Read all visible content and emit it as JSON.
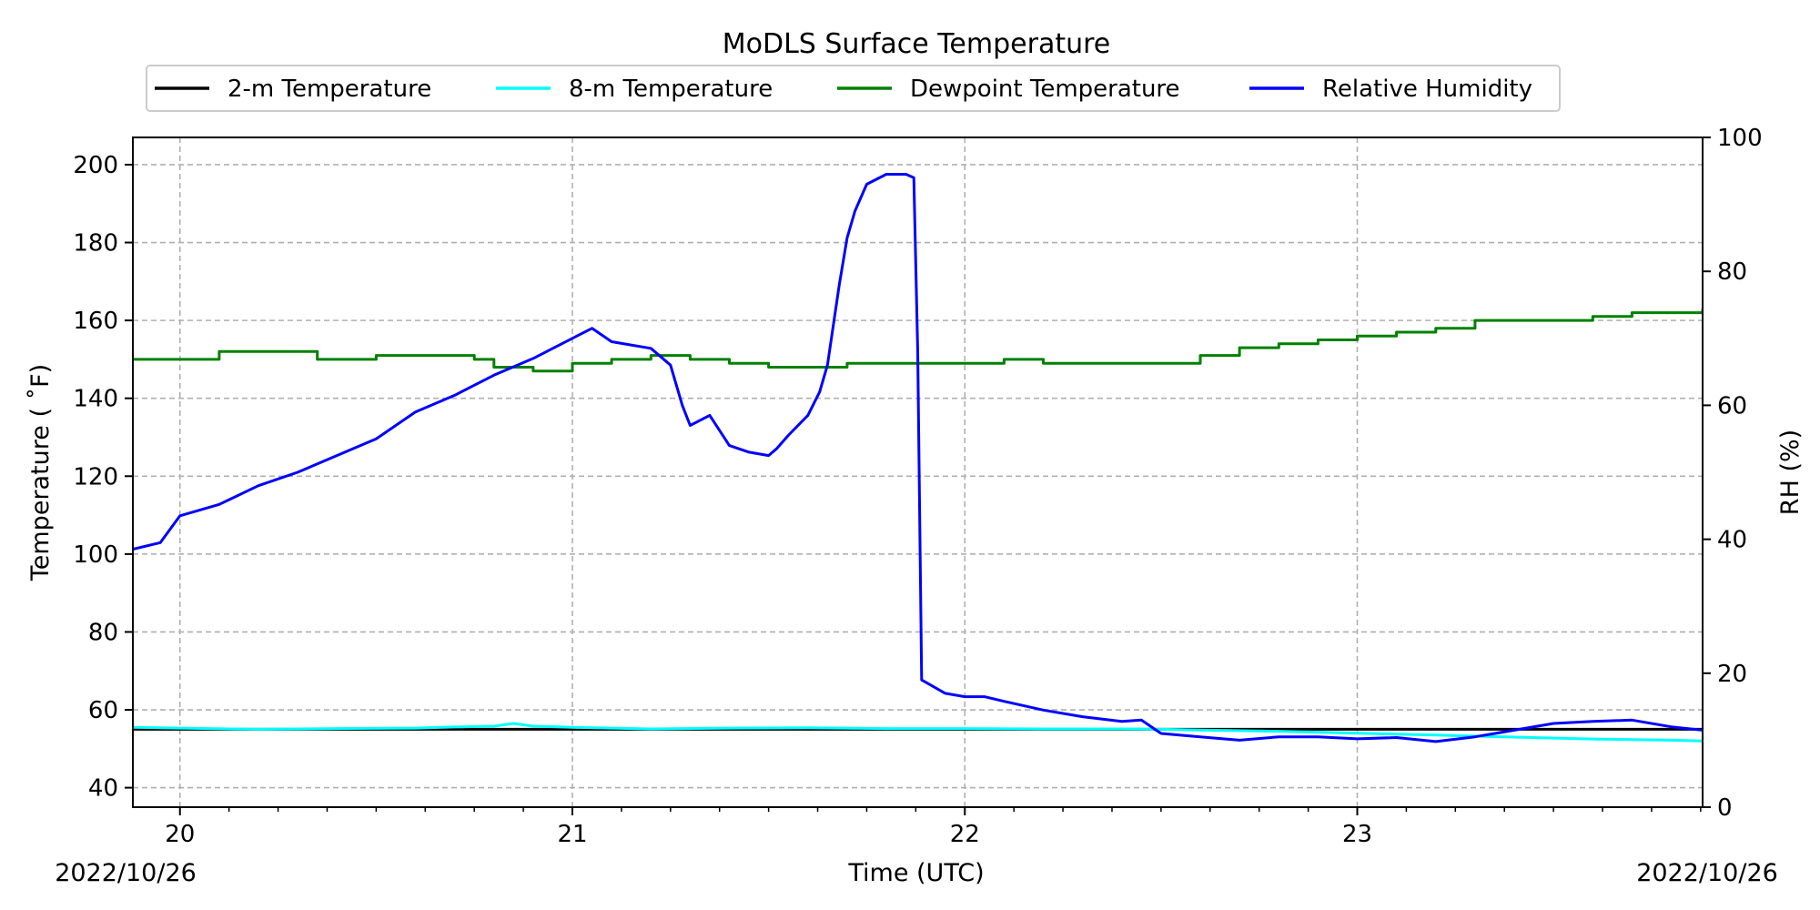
{
  "chart_data": {
    "type": "line",
    "title": "MoDLS Surface Temperature",
    "xlabel": "Time (UTC)",
    "ylabel_left": "Temperature ($^\\circ$F)",
    "ylabel_left_display": "Temperature ( ˚F)",
    "ylabel_right": "RH (%)",
    "x_unit": "hour (UTC), 2022/10/26",
    "xlim": [
      19.88,
      23.88
    ],
    "ylim_left": [
      35,
      207
    ],
    "ylim_right": [
      0,
      100
    ],
    "x_ticks": [
      20,
      21,
      22,
      23
    ],
    "x_tick_labels": [
      "20",
      "21",
      "22",
      "23"
    ],
    "y_ticks_left": [
      40,
      60,
      80,
      100,
      120,
      140,
      160,
      180,
      200
    ],
    "y_ticks_right": [
      0,
      20,
      40,
      60,
      80,
      100
    ],
    "date_left": "2022/10/26",
    "date_right": "2022/10/26",
    "grid": true,
    "legend_position": "top-center",
    "series": [
      {
        "name": "2-m Temperature",
        "axis": "left",
        "color": "#000000",
        "x": [
          19.88,
          20.2,
          20.6,
          21.0,
          21.4,
          21.8,
          22.2,
          22.6,
          23.0,
          23.4,
          23.88
        ],
        "y": [
          55,
          55,
          55,
          55,
          55,
          55,
          55,
          55,
          55,
          55,
          55
        ]
      },
      {
        "name": "8-m Temperature",
        "axis": "left",
        "color": "#00ffff",
        "x": [
          19.88,
          20.0,
          20.2,
          20.4,
          20.6,
          20.7,
          20.8,
          20.85,
          20.9,
          21.0,
          21.2,
          21.4,
          21.6,
          21.8,
          22.0,
          22.2,
          22.4,
          22.5,
          22.6,
          22.8,
          23.0,
          23.2,
          23.4,
          23.6,
          23.8,
          23.88
        ],
        "y": [
          55.5,
          55.3,
          55.0,
          55.2,
          55.3,
          55.6,
          55.8,
          56.5,
          55.8,
          55.5,
          55.1,
          55.3,
          55.4,
          55.2,
          55.2,
          55.1,
          55.1,
          55.0,
          54.8,
          54.5,
          54.0,
          53.5,
          53.0,
          52.5,
          52.2,
          52.0
        ]
      },
      {
        "name": "Dewpoint Temperature",
        "axis": "left",
        "color": "#008000",
        "x": [
          19.88,
          19.95,
          20.0,
          20.1,
          20.2,
          20.35,
          20.5,
          20.65,
          20.75,
          20.8,
          20.9,
          21.0,
          21.1,
          21.2,
          21.3,
          21.4,
          21.5,
          21.6,
          21.7,
          21.8,
          22.0,
          22.1,
          22.2,
          22.3,
          22.4,
          22.5,
          22.6,
          22.7,
          22.8,
          22.9,
          23.0,
          23.1,
          23.2,
          23.3,
          23.5,
          23.6,
          23.7,
          23.8,
          23.88
        ],
        "y": [
          150,
          150,
          150,
          152,
          152,
          150,
          151,
          151,
          150,
          148,
          147,
          149,
          150,
          151,
          150,
          149,
          148,
          148,
          149,
          149,
          149,
          150,
          149,
          149,
          149,
          149,
          151,
          153,
          154,
          155,
          156,
          157,
          158,
          160,
          160,
          161,
          162,
          162,
          163
        ]
      },
      {
        "name": "Relative Humidity",
        "axis": "right",
        "color": "#0000ff",
        "x": [
          19.88,
          19.95,
          20.0,
          20.1,
          20.2,
          20.3,
          20.4,
          20.5,
          20.6,
          20.7,
          20.8,
          20.9,
          21.0,
          21.05,
          21.1,
          21.2,
          21.25,
          21.28,
          21.3,
          21.35,
          21.4,
          21.45,
          21.5,
          21.52,
          21.55,
          21.6,
          21.63,
          21.65,
          21.68,
          21.7,
          21.72,
          21.75,
          21.8,
          21.85,
          21.87,
          21.88,
          21.89,
          21.95,
          22.0,
          22.05,
          22.1,
          22.2,
          22.3,
          22.4,
          22.45,
          22.5,
          22.6,
          22.7,
          22.8,
          22.9,
          23.0,
          23.1,
          23.2,
          23.3,
          23.4,
          23.5,
          23.6,
          23.7,
          23.8,
          23.88
        ],
        "y": [
          38.5,
          39.5,
          43.5,
          45.2,
          48,
          50,
          52.5,
          55,
          59,
          61.5,
          64.5,
          67,
          70,
          71.5,
          69.5,
          68.5,
          66,
          60,
          57,
          58.5,
          54,
          53,
          52.5,
          53.5,
          55.5,
          58.5,
          62,
          66,
          78,
          85,
          89,
          93,
          94.5,
          94.5,
          94,
          68,
          19,
          17,
          16.5,
          16.5,
          15.8,
          14.5,
          13.5,
          12.8,
          13,
          11,
          10.5,
          10,
          10.5,
          10.5,
          10.2,
          10.4,
          9.8,
          10.5,
          11.5,
          12.5,
          12.8,
          13,
          12,
          11.5
        ]
      }
    ]
  }
}
